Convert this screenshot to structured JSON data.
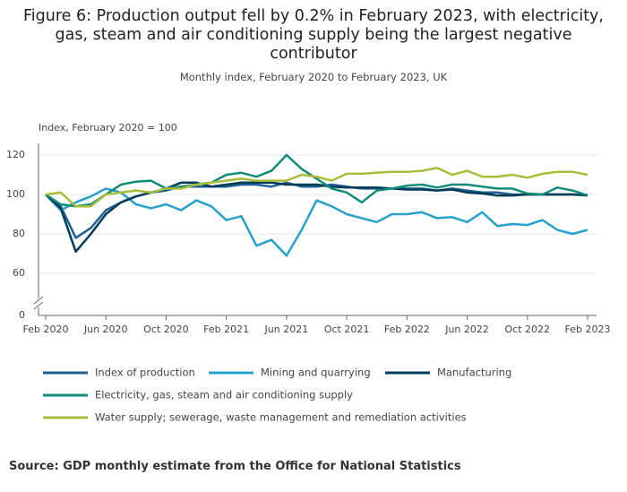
{
  "chart_data": {
    "type": "line",
    "title": "Figure 6: Production output fell by 0.2% in February 2023, with electricity, gas, steam and air conditioning supply being the largest negative contributor",
    "subtitle": "Monthly index, February 2020 to February 2023, UK",
    "y_label": "Index, February 2020 = 100",
    "source": "Source:  GDP monthly estimate from the Office for National Statistics",
    "categories": [
      "Feb 2020",
      null,
      null,
      null,
      "Jun 2020",
      null,
      null,
      null,
      "Oct 2020",
      null,
      null,
      null,
      "Feb 2021",
      null,
      null,
      null,
      "Jun 2021",
      null,
      null,
      null,
      "Oct 2021",
      null,
      null,
      null,
      "Feb 2022",
      null,
      null,
      null,
      "Jun 2022",
      null,
      null,
      null,
      "Oct 2022",
      null,
      null,
      null,
      "Feb 2023"
    ],
    "ylim": [
      0,
      128
    ],
    "y_break": [
      0,
      55
    ],
    "yticks": [
      0,
      60,
      80,
      100,
      120
    ],
    "grid": true,
    "series": [
      {
        "name": "Index of production",
        "color": "#206095",
        "values": [
          100,
          94,
          78,
          83,
          92,
          96,
          99,
          101,
          102,
          104,
          104,
          104,
          104,
          105,
          105,
          104,
          106,
          104,
          104,
          105,
          104,
          103,
          103,
          103,
          103,
          103,
          102,
          103,
          102,
          101,
          101,
          100,
          100,
          100,
          100,
          100,
          99.8
        ]
      },
      {
        "name": "Mining and quarrying",
        "color": "#27a0cc",
        "values": [
          100,
          92,
          96,
          99,
          103,
          101,
          95,
          93,
          95,
          92,
          97,
          94,
          87,
          89,
          74,
          77,
          69,
          82,
          97,
          94,
          90,
          88,
          86,
          90,
          90,
          91,
          88,
          88.5,
          86,
          91,
          84,
          85,
          84.5,
          87,
          82,
          80,
          82
        ]
      },
      {
        "name": "Manufacturing",
        "color": "#003c57",
        "values": [
          100,
          93,
          71,
          80,
          90,
          96,
          99,
          101,
          103,
          106,
          106,
          104,
          105,
          106,
          106,
          106,
          105,
          105,
          105,
          104,
          103.5,
          103.5,
          103.5,
          103,
          102.5,
          102.5,
          102,
          102.5,
          101,
          100.5,
          99.5,
          99.5,
          100,
          100,
          100,
          100,
          99.5
        ]
      },
      {
        "name": "Electricity, gas, steam and air conditioning supply",
        "color": "#118c7b",
        "values": [
          100,
          95,
          94,
          95,
          100,
          105,
          106.5,
          107,
          103,
          104,
          105,
          106,
          110,
          111,
          109,
          112,
          120,
          113,
          108,
          103,
          101,
          96,
          102,
          103,
          104.5,
          105,
          103.5,
          105,
          105,
          104,
          103,
          103,
          100.5,
          100,
          103.5,
          102,
          99.5
        ]
      },
      {
        "name": "Water supply; sewerage, waste management and remediation activities",
        "color": "#a8bd3a",
        "values": [
          100,
          101,
          94,
          94,
          100,
          101,
          102,
          101,
          103,
          103,
          105,
          106,
          107,
          108,
          107,
          107,
          107,
          110,
          109,
          107,
          110.5,
          110.5,
          111,
          111.5,
          111.5,
          112,
          113.5,
          110,
          112,
          109,
          109,
          110,
          108.5,
          110.5,
          111.5,
          111.5,
          110
        ]
      }
    ]
  }
}
